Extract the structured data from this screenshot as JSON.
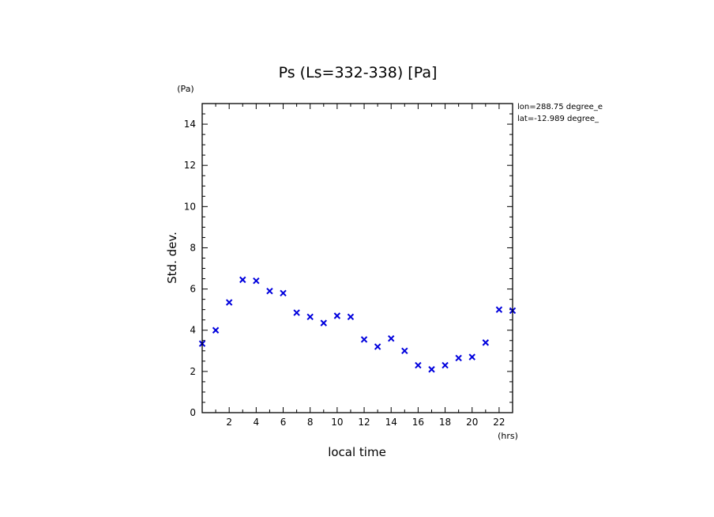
{
  "chart_data": {
    "type": "scatter",
    "title": "Ps (Ls=332-338) [Pa]",
    "xlabel": "local time",
    "ylabel": "Std. dev.",
    "x_unit": "(hrs)",
    "y_unit": "(Pa)",
    "xlim": [
      0,
      23
    ],
    "ylim": [
      0,
      15
    ],
    "xticks": [
      2,
      4,
      6,
      8,
      10,
      12,
      14,
      16,
      18,
      20,
      22
    ],
    "yticks": [
      0,
      2,
      4,
      6,
      8,
      10,
      12,
      14
    ],
    "marker": "x",
    "marker_color": "#0000dd",
    "annotations": [
      "lon=288.75 degree_e",
      "lat=-12.989 degree_"
    ],
    "x": [
      0,
      1,
      2,
      3,
      4,
      5,
      6,
      7,
      8,
      9,
      10,
      11,
      12,
      13,
      14,
      15,
      16,
      17,
      18,
      19,
      20,
      21,
      22,
      23
    ],
    "y": [
      3.35,
      4.0,
      5.35,
      6.45,
      6.4,
      5.9,
      5.8,
      4.85,
      4.65,
      4.35,
      4.7,
      4.65,
      3.55,
      3.2,
      3.6,
      3.0,
      2.3,
      2.1,
      2.3,
      2.65,
      2.7,
      3.4,
      5.0,
      4.95
    ]
  }
}
